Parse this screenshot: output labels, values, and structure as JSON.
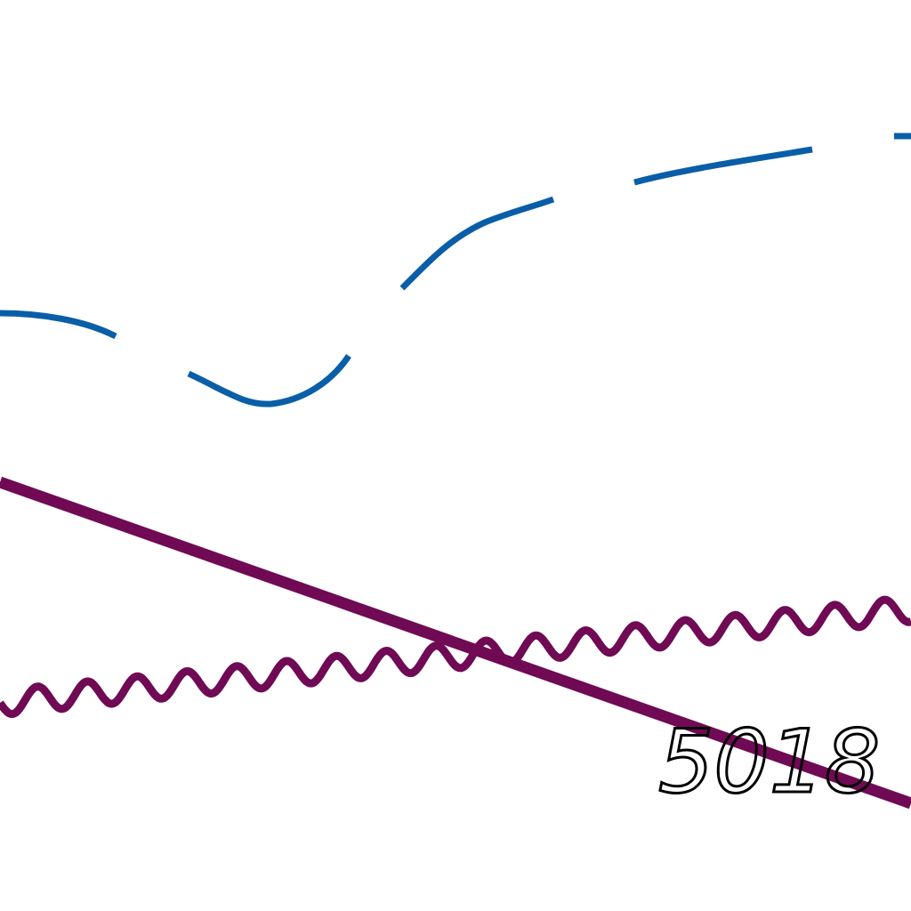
{
  "map": {
    "labels": {
      "road_number": "5018"
    },
    "colors": {
      "background": "#ffffff",
      "contour": "#0a5ea8",
      "road": "#700a54",
      "railway": "#700a54",
      "label": "#000000"
    },
    "features": {
      "contour": "contour-line-dashed",
      "road": "road-line",
      "railway": "zigzag-line"
    }
  }
}
